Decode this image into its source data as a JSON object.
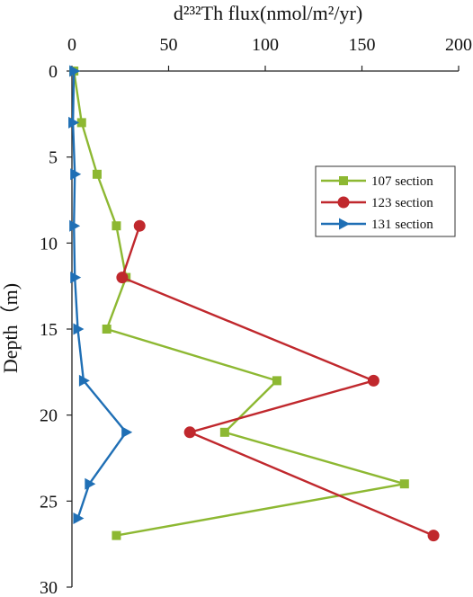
{
  "chart_data": {
    "type": "line",
    "title": "d²³²Th flux(nmol/m²/yr)",
    "ylabel": "Depth（m)",
    "x_axis_position": "top",
    "y_axis_inverted": true,
    "xlim": [
      0,
      200
    ],
    "ylim": [
      0,
      30
    ],
    "x_ticks": [
      "0",
      "50",
      "100",
      "150",
      "200"
    ],
    "y_ticks": [
      "0",
      "5",
      "10",
      "15",
      "20",
      "25",
      "30"
    ],
    "legend_position": "right",
    "series": [
      {
        "name": "107 section",
        "color": "#8db832",
        "marker": "square",
        "x": [
          1,
          5,
          13,
          23,
          28,
          18,
          106,
          79,
          172,
          23
        ],
        "y": [
          0,
          3,
          6,
          9,
          12,
          15,
          18,
          21,
          24,
          27
        ]
      },
      {
        "name": "123 section",
        "color": "#c0282d",
        "marker": "circle",
        "x": [
          35,
          26,
          156,
          61,
          187
        ],
        "y": [
          9,
          12,
          18,
          21,
          27
        ]
      },
      {
        "name": "131 section",
        "color": "#1f6fb5",
        "marker": "triangle",
        "x": [
          1,
          0.5,
          1.5,
          1,
          1.5,
          3,
          6,
          28,
          9,
          3
        ],
        "y": [
          0,
          3,
          6,
          9,
          12,
          15,
          18,
          21,
          24,
          26
        ]
      }
    ]
  }
}
